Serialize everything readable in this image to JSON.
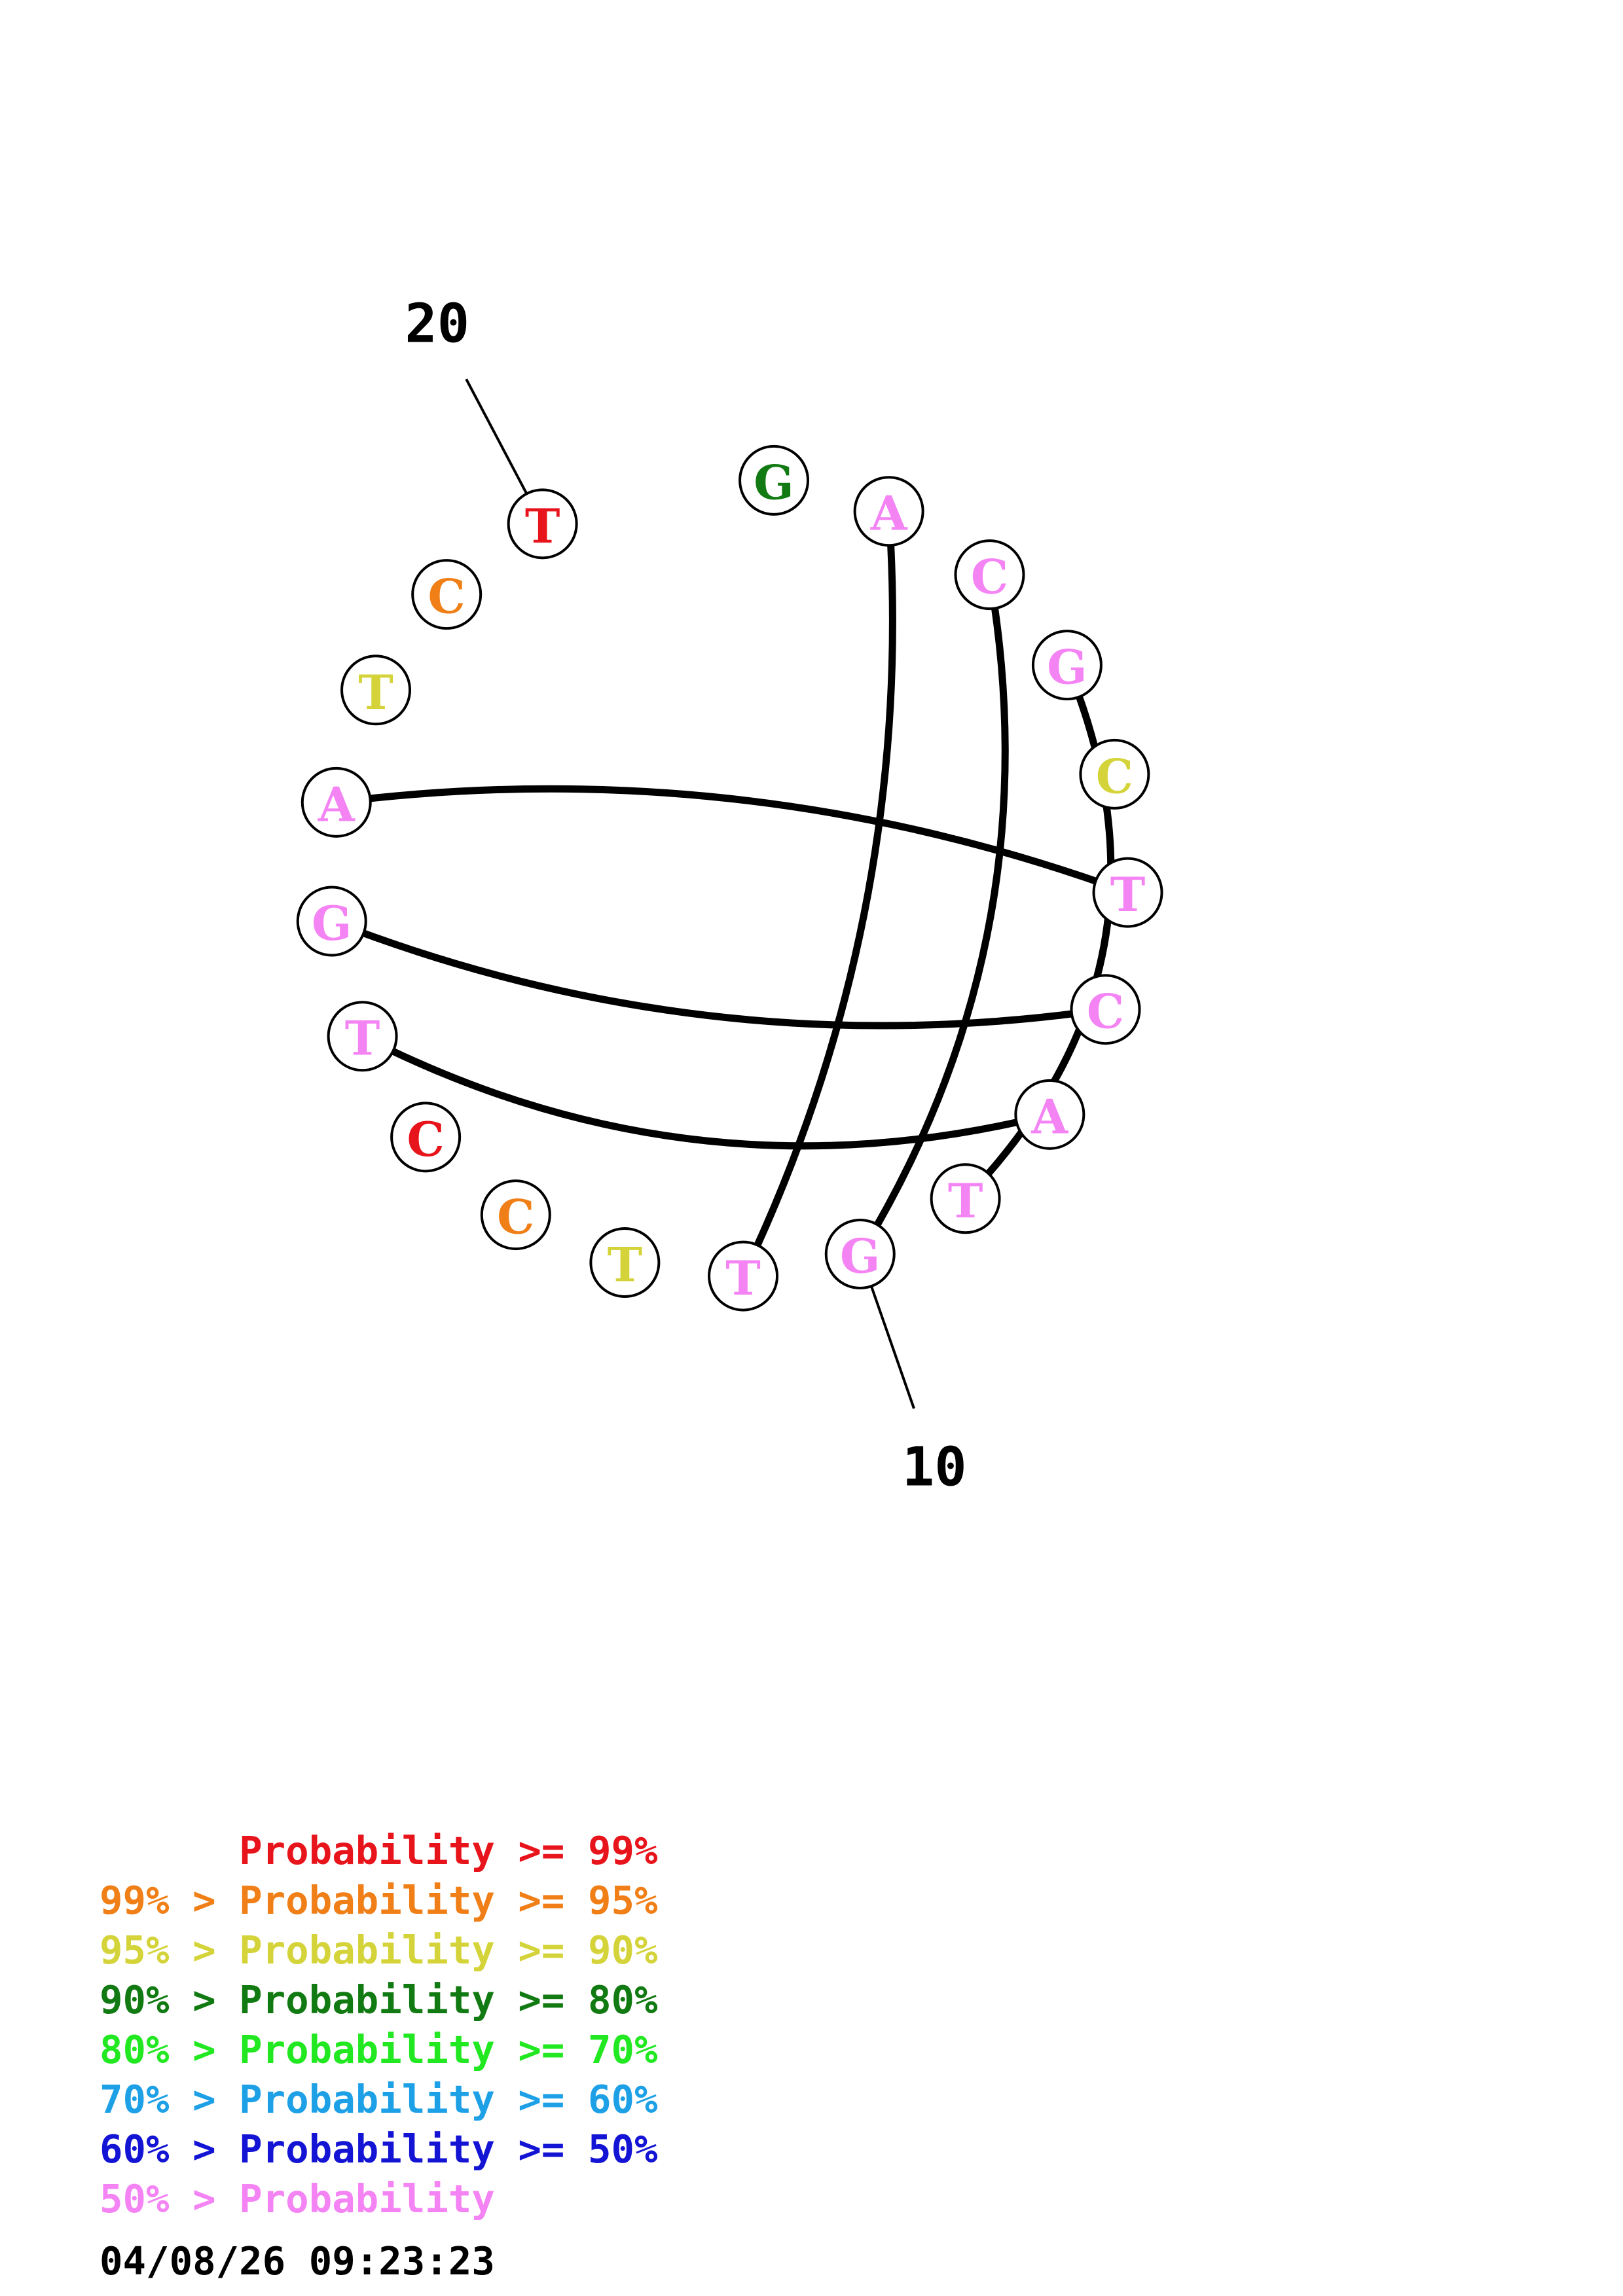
{
  "sequence": [
    {
      "index": 1,
      "base": "G",
      "prob_level": 3
    },
    {
      "index": 2,
      "base": "A",
      "prob_level": 7
    },
    {
      "index": 3,
      "base": "C",
      "prob_level": 7
    },
    {
      "index": 4,
      "base": "G",
      "prob_level": 7
    },
    {
      "index": 5,
      "base": "C",
      "prob_level": 2
    },
    {
      "index": 6,
      "base": "T",
      "prob_level": 7
    },
    {
      "index": 7,
      "base": "C",
      "prob_level": 7
    },
    {
      "index": 8,
      "base": "A",
      "prob_level": 7
    },
    {
      "index": 9,
      "base": "T",
      "prob_level": 7
    },
    {
      "index": 10,
      "base": "G",
      "prob_level": 7
    },
    {
      "index": 11,
      "base": "T",
      "prob_level": 7
    },
    {
      "index": 12,
      "base": "T",
      "prob_level": 2
    },
    {
      "index": 13,
      "base": "C",
      "prob_level": 1
    },
    {
      "index": 14,
      "base": "C",
      "prob_level": 0
    },
    {
      "index": 15,
      "base": "T",
      "prob_level": 7
    },
    {
      "index": 16,
      "base": "G",
      "prob_level": 7
    },
    {
      "index": 17,
      "base": "A",
      "prob_level": 7
    },
    {
      "index": 18,
      "base": "T",
      "prob_level": 2
    },
    {
      "index": 19,
      "base": "C",
      "prob_level": 1
    },
    {
      "index": 20,
      "base": "T",
      "prob_level": 0
    }
  ],
  "pairs": [
    [
      2,
      11
    ],
    [
      3,
      10
    ],
    [
      4,
      9
    ],
    [
      6,
      17
    ],
    [
      7,
      16
    ],
    [
      8,
      15
    ]
  ],
  "position_labels": [
    {
      "index": 10,
      "text": "10"
    },
    {
      "index": 20,
      "text": "20"
    }
  ],
  "legend": [
    {
      "prefix": "",
      "label": "Probability",
      "suffix": ">= 99%",
      "color": "#e8141c"
    },
    {
      "prefix": "99% > ",
      "label": "Probability",
      "suffix": ">= 95%",
      "color": "#f07f17"
    },
    {
      "prefix": "95% > ",
      "label": "Probability",
      "suffix": ">= 90%",
      "color": "#d4d43a"
    },
    {
      "prefix": "90% > ",
      "label": "Probability",
      "suffix": ">= 80%",
      "color": "#127a12"
    },
    {
      "prefix": "80% > ",
      "label": "Probability",
      "suffix": ">= 70%",
      "color": "#22e822"
    },
    {
      "prefix": "70% > ",
      "label": "Probability",
      "suffix": ">= 60%",
      "color": "#1ea0e6"
    },
    {
      "prefix": "60% > ",
      "label": "Probability",
      "suffix": ">= 50%",
      "color": "#1414d4"
    },
    {
      "prefix": "50% > ",
      "label": "Probability",
      "suffix": "",
      "color": "#f483f4"
    }
  ],
  "timestamp": "04/08/26 09:23:23"
}
